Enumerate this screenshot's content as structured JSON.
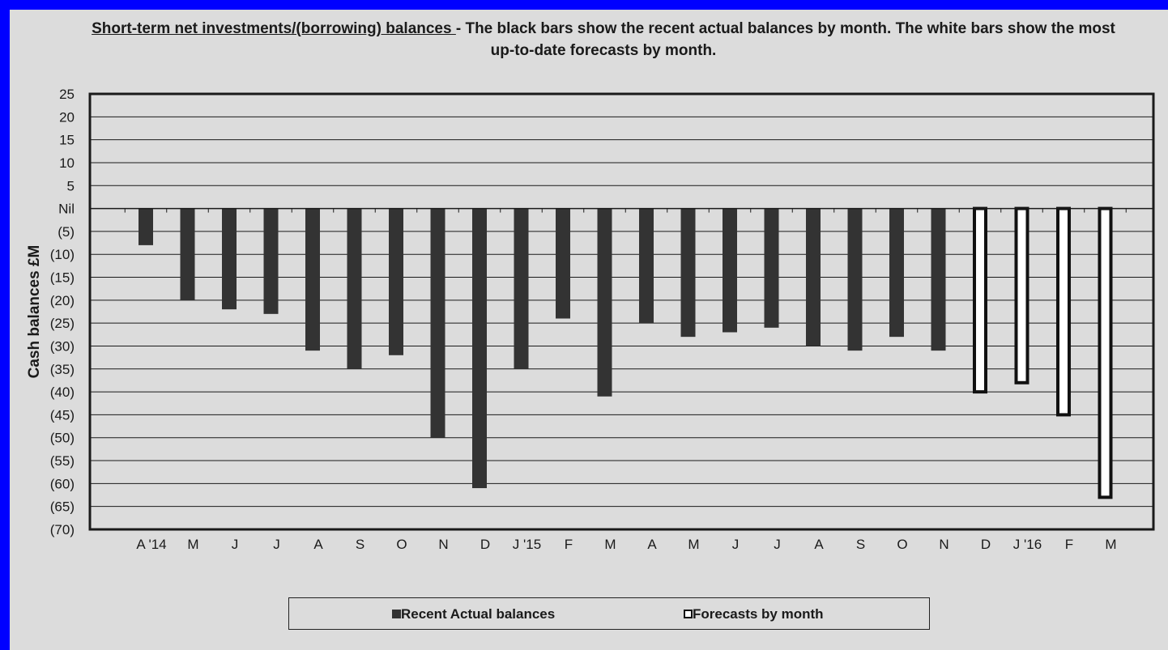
{
  "title": {
    "underlined": "Short-term net investments/(borrowing) balances ",
    "rest": "- The black bars show the recent actual balances by month. The white bars show the most up-to-date forecasts by month."
  },
  "chart_data": {
    "type": "bar",
    "ylabel": "Cash balances £M",
    "ylim": [
      -70,
      25
    ],
    "y_ticks": [
      {
        "value": 25,
        "label": "25"
      },
      {
        "value": 20,
        "label": "20"
      },
      {
        "value": 15,
        "label": "15"
      },
      {
        "value": 10,
        "label": "10"
      },
      {
        "value": 5,
        "label": "5"
      },
      {
        "value": 0,
        "label": "Nil"
      },
      {
        "value": -5,
        "label": "(5)"
      },
      {
        "value": -10,
        "label": "(10)"
      },
      {
        "value": -15,
        "label": "(15)"
      },
      {
        "value": -20,
        "label": "(20)"
      },
      {
        "value": -25,
        "label": "(25)"
      },
      {
        "value": -30,
        "label": "(30)"
      },
      {
        "value": -35,
        "label": "(35)"
      },
      {
        "value": -40,
        "label": "(40)"
      },
      {
        "value": -45,
        "label": "(45)"
      },
      {
        "value": -50,
        "label": "(50)"
      },
      {
        "value": -55,
        "label": "(55)"
      },
      {
        "value": -60,
        "label": "(60)"
      },
      {
        "value": -65,
        "label": "(65)"
      },
      {
        "value": -70,
        "label": "(70)"
      }
    ],
    "grid": true,
    "categories": [
      "A '14",
      "M",
      "J",
      "J",
      "A",
      "S",
      "O",
      "N",
      "D",
      "J '15",
      "F",
      "M",
      "A",
      "M",
      "J",
      "J",
      "A",
      "S",
      "O",
      "N",
      "D",
      "J '16",
      "F",
      "M"
    ],
    "series": [
      {
        "name": "Recent Actual balances",
        "color": "#333333",
        "values": [
          -8,
          -20,
          -22,
          -23,
          -31,
          -35,
          -32,
          -50,
          -61,
          -35,
          -24,
          -41,
          -25,
          -28,
          -27,
          -26,
          -30,
          -31,
          -28,
          -31,
          null,
          null,
          null,
          null
        ]
      },
      {
        "name": "Forecasts by month",
        "color": "#ffffff",
        "values": [
          null,
          null,
          null,
          null,
          null,
          null,
          null,
          null,
          null,
          null,
          null,
          null,
          null,
          null,
          null,
          null,
          null,
          null,
          null,
          null,
          -40,
          -38,
          -45,
          -63
        ]
      }
    ],
    "legend": "bottom"
  }
}
